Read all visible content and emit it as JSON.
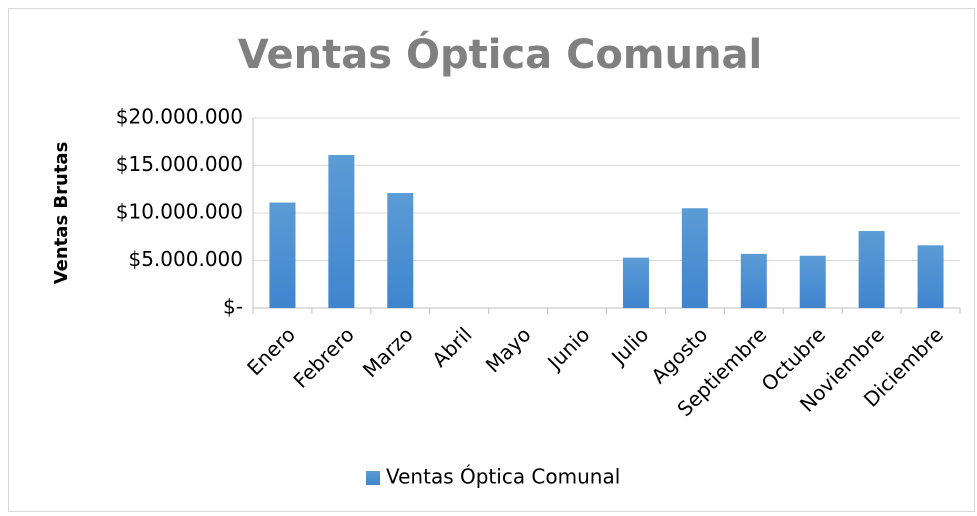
{
  "chart_data": {
    "type": "bar",
    "title": "Ventas Óptica Comunal",
    "y_label": "Ventas Brutas",
    "categories": [
      "Enero",
      "Febrero",
      "Marzo",
      "Abril",
      "Mayo",
      "Junio",
      "Julio",
      "Agosto",
      "Septiembre",
      "Octubre",
      "Noviembre",
      "Diciembre"
    ],
    "series": [
      {
        "name": "Ventas Óptica Comunal",
        "color": "#5b9bd5",
        "values": [
          11100000,
          16100000,
          12100000,
          0,
          0,
          0,
          5300000,
          10500000,
          5700000,
          5500000,
          8100000,
          6600000
        ]
      }
    ],
    "ylim": [
      0,
      20000000
    ],
    "yticks": [
      {
        "value": 0,
        "label": "$-"
      },
      {
        "value": 5000000,
        "label": "$5.000.000"
      },
      {
        "value": 10000000,
        "label": "$10.000.000"
      },
      {
        "value": 15000000,
        "label": "$15.000.000"
      },
      {
        "value": 20000000,
        "label": "$20.000.000"
      }
    ],
    "grid": true,
    "legend": "bottom"
  }
}
